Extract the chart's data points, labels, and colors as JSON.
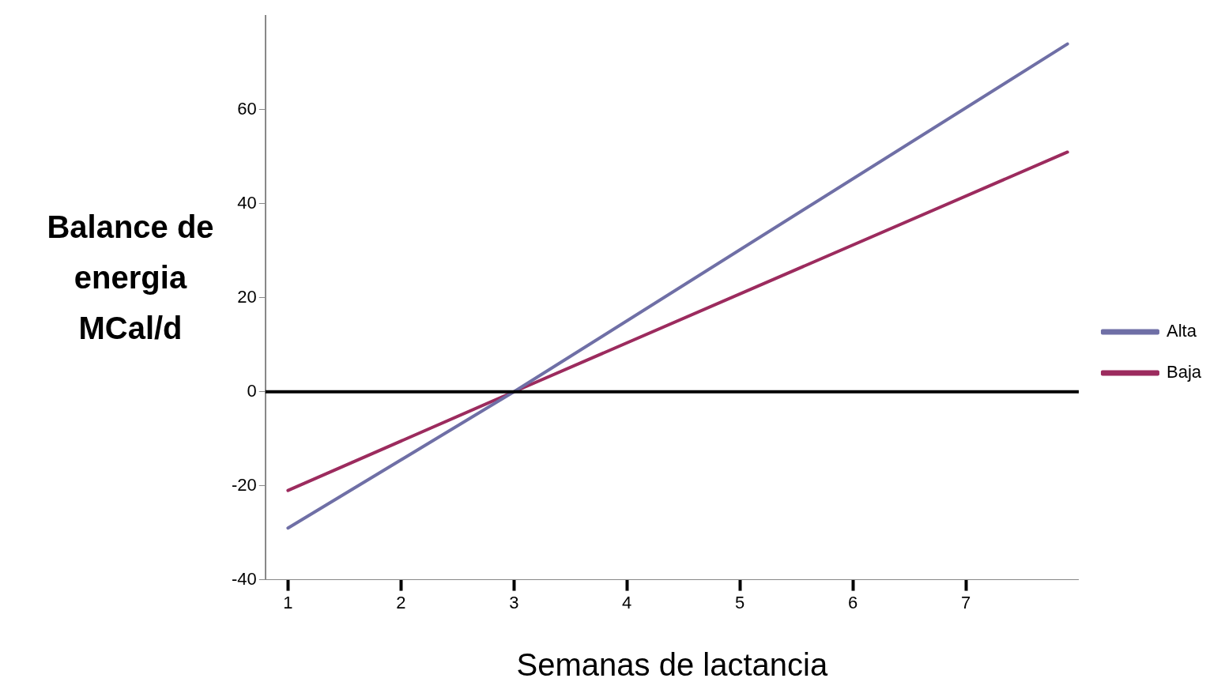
{
  "chart_data": {
    "type": "line",
    "xlabel": "Semanas de lactancia",
    "ylabel": "Balance de energia MCal/d",
    "series": [
      {
        "name": "Alta",
        "color": "#6f6fa6",
        "x": [
          1,
          3,
          7.9
        ],
        "values": [
          -29,
          0,
          74
        ]
      },
      {
        "name": "Baja",
        "color": "#9c2b5e",
        "x": [
          1,
          3,
          7.9
        ],
        "values": [
          -21,
          0,
          51
        ]
      }
    ],
    "xlim": [
      0.8,
      8
    ],
    "xticks": [
      1,
      2,
      3,
      4,
      5,
      6,
      7
    ],
    "ylim": [
      -40,
      80
    ],
    "yticks": [
      -40,
      -20,
      0,
      20,
      40,
      60
    ],
    "ref_lines": [
      {
        "axis": "y",
        "value": 0,
        "color": "#000000"
      }
    ],
    "grid": false,
    "legend": "right",
    "marker": "none",
    "line_style": "solid"
  }
}
